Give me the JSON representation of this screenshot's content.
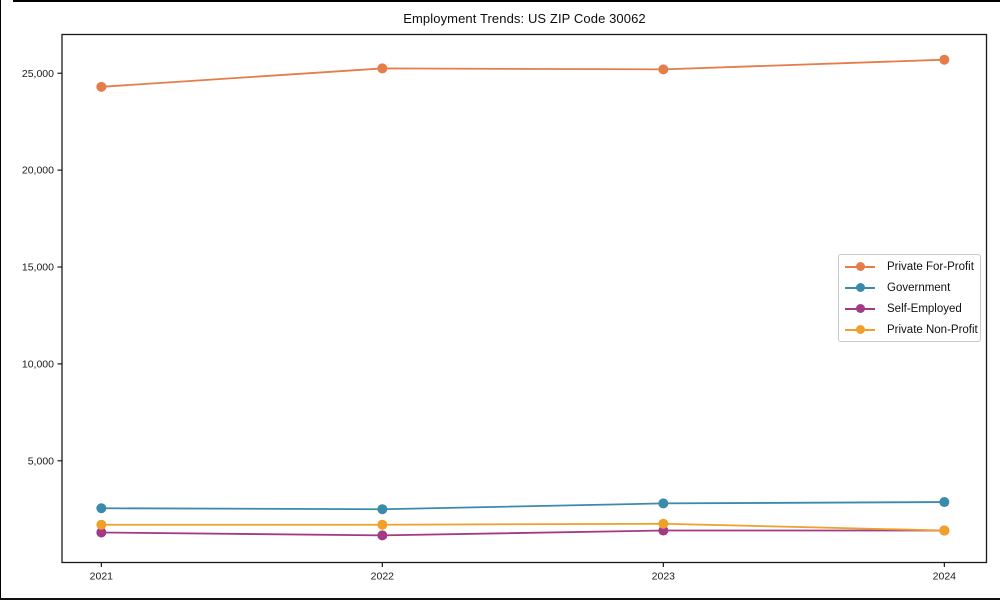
{
  "chart_data": {
    "type": "line",
    "title": "Employment Trends: US ZIP Code 30062",
    "x": [
      2021,
      2022,
      2023,
      2024
    ],
    "x_tick_labels": [
      "2021",
      "2022",
      "2023",
      "2024"
    ],
    "y_ticks": [
      5000,
      10000,
      15000,
      20000,
      25000
    ],
    "y_tick_labels": [
      "5,000",
      "10,000",
      "15,000",
      "20,000",
      "25,000"
    ],
    "xlim": [
      2020.86,
      2024.15
    ],
    "ylim": [
      -250,
      27000
    ],
    "grid": false,
    "legend_position": "center-right",
    "axis_color": "#1a1a1a",
    "series": [
      {
        "name": "Private For-Profit",
        "color": "#e57c4a",
        "values": [
          24300,
          25250,
          25200,
          25700
        ]
      },
      {
        "name": "Government",
        "color": "#3a8bab",
        "values": [
          2550,
          2500,
          2800,
          2870
        ]
      },
      {
        "name": "Self-Employed",
        "color": "#a23a86",
        "values": [
          1300,
          1150,
          1400,
          1400
        ]
      },
      {
        "name": "Private Non-Profit",
        "color": "#f0a028",
        "values": [
          1700,
          1700,
          1750,
          1400
        ]
      }
    ]
  }
}
